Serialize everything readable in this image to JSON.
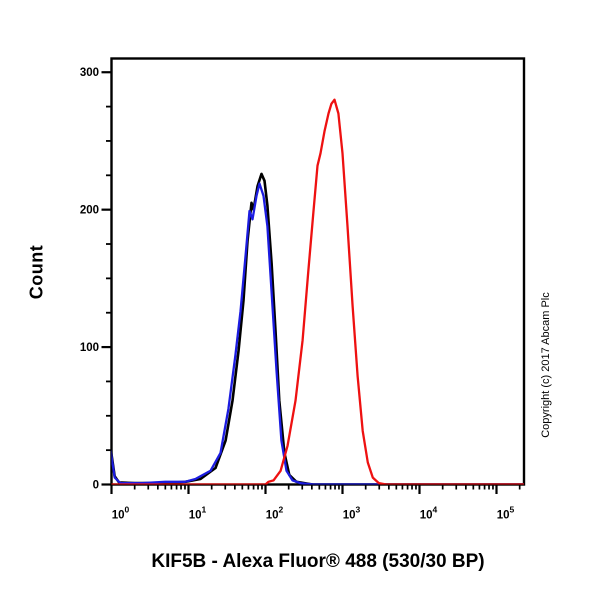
{
  "figure": {
    "title": "KIF5B - Alexa Fluor® 488 (530/30 BP)",
    "y_axis_label": "Count",
    "copyright": "Copyright (c) 2017 Abcam Plc",
    "background_color": "#ffffff",
    "frame_color": "#000000"
  },
  "chart_data": {
    "type": "line",
    "subtype": "flow cytometry histogram overlay",
    "title": "KIF5B - Alexa Fluor® 488 (530/30 BP)",
    "xlabel": "KIF5B - Alexa Fluor® 488 (530/30 BP)",
    "ylabel": "Count",
    "grid": false,
    "legend": "none",
    "x_axis": {
      "scale": "log10",
      "min": 1,
      "max": 230000,
      "tick_label_base": "10",
      "decade_exponents": [
        "0",
        "1",
        "2",
        "3",
        "4",
        "5"
      ],
      "minor_tick_multipliers": [
        2,
        3,
        4,
        5,
        6,
        7,
        8,
        9
      ]
    },
    "y_axis": {
      "min": 0,
      "max": 310,
      "major_ticks": [
        "0",
        "100",
        "200",
        "300"
      ],
      "minor_tick_step": 25
    },
    "series": [
      {
        "name": "black-curve",
        "color": "#000000",
        "stroke_width": 2.6,
        "peak_value": 89,
        "peak_count": 226,
        "points": [
          [
            0.9,
            0
          ],
          [
            0.97,
            27
          ],
          [
            1.1,
            6
          ],
          [
            1.25,
            1.5
          ],
          [
            2,
            1
          ],
          [
            4,
            1
          ],
          [
            7,
            1.5
          ],
          [
            9.1,
            2
          ],
          [
            14.3,
            4
          ],
          [
            22.4,
            12
          ],
          [
            30.3,
            32
          ],
          [
            37.3,
            61
          ],
          [
            44.6,
            97
          ],
          [
            51.8,
            134
          ],
          [
            58.3,
            177
          ],
          [
            65.8,
            205
          ],
          [
            69.8,
            200
          ],
          [
            78.7,
            217
          ],
          [
            88.7,
            226
          ],
          [
            97,
            221
          ],
          [
            106,
            203
          ],
          [
            120,
            161
          ],
          [
            135,
            112
          ],
          [
            151,
            61
          ],
          [
            176,
            23
          ],
          [
            204,
            7
          ],
          [
            252,
            2
          ],
          [
            410,
            0
          ],
          [
            230000,
            0
          ]
        ]
      },
      {
        "name": "blue-curve",
        "color": "#1c1ce0",
        "stroke_width": 2.3,
        "peak_value": 84,
        "peak_count": 219,
        "points": [
          [
            0.9,
            0
          ],
          [
            0.97,
            25
          ],
          [
            1.1,
            5
          ],
          [
            1.3,
            1
          ],
          [
            2.5,
            1
          ],
          [
            5,
            2
          ],
          [
            9,
            2
          ],
          [
            12.3,
            4
          ],
          [
            19.3,
            10
          ],
          [
            26,
            23
          ],
          [
            33,
            55
          ],
          [
            40.7,
            94
          ],
          [
            47.3,
            126
          ],
          [
            55,
            166
          ],
          [
            62,
            199
          ],
          [
            67.8,
            193
          ],
          [
            76.4,
            210
          ],
          [
            83.6,
            219
          ],
          [
            94.2,
            210
          ],
          [
            106,
            188
          ],
          [
            119.7,
            141
          ],
          [
            139,
            83
          ],
          [
            161,
            32
          ],
          [
            187.5,
            10
          ],
          [
            224,
            3
          ],
          [
            285,
            1
          ],
          [
            420,
            0
          ],
          [
            230000,
            0
          ]
        ]
      },
      {
        "name": "red-curve",
        "color": "#ee1111",
        "stroke_width": 2.3,
        "peak_value": 790,
        "peak_count": 280,
        "points": [
          [
            0.9,
            0
          ],
          [
            100,
            0
          ],
          [
            109,
            2
          ],
          [
            127,
            3
          ],
          [
            157,
            10
          ],
          [
            193,
            28
          ],
          [
            245,
            61
          ],
          [
            303,
            105
          ],
          [
            361,
            156
          ],
          [
            420,
            199
          ],
          [
            473,
            232
          ],
          [
            518,
            241
          ],
          [
            584,
            257
          ],
          [
            657,
            270
          ],
          [
            718,
            277
          ],
          [
            787,
            280
          ],
          [
            884,
            270
          ],
          [
            1000,
            241
          ],
          [
            1162,
            188
          ],
          [
            1352,
            130
          ],
          [
            1573,
            79
          ],
          [
            1830,
            39
          ],
          [
            2129,
            16
          ],
          [
            2477,
            5
          ],
          [
            2960,
            1
          ],
          [
            3740,
            0
          ],
          [
            230000,
            0
          ]
        ]
      }
    ]
  }
}
